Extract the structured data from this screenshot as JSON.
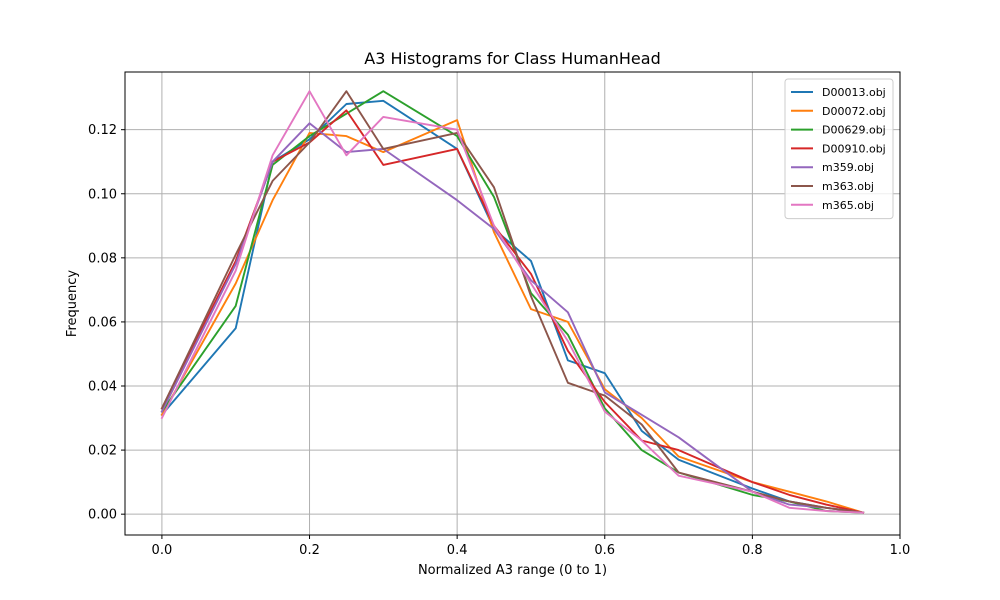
{
  "chart_data": {
    "type": "line",
    "title": "A3 Histograms for Class HumanHead",
    "xlabel": "Normalized A3 range (0 to 1)",
    "ylabel": "Frequency",
    "xlim": [
      -0.05,
      1.0
    ],
    "ylim": [
      -0.0065,
      0.138
    ],
    "xticks": [
      0.0,
      0.2,
      0.4,
      0.6,
      0.8,
      1.0
    ],
    "xtick_labels": [
      "0.0",
      "0.2",
      "0.4",
      "0.6",
      "0.8",
      "1.0"
    ],
    "yticks": [
      0.0,
      0.02,
      0.04,
      0.06,
      0.08,
      0.1,
      0.12
    ],
    "ytick_labels": [
      "0.00",
      "0.02",
      "0.04",
      "0.06",
      "0.08",
      "0.10",
      "0.12"
    ],
    "grid": true,
    "legend_position": "top-right",
    "x": [
      0.0,
      0.1,
      0.15,
      0.2,
      0.25,
      0.3,
      0.4,
      0.45,
      0.5,
      0.55,
      0.6,
      0.65,
      0.7,
      0.8,
      0.85,
      0.9,
      0.95
    ],
    "series": [
      {
        "name": "D00013.obj",
        "color": "#1f77b4",
        "values": [
          0.031,
          0.058,
          0.11,
          0.117,
          0.128,
          0.129,
          0.114,
          0.089,
          0.079,
          0.048,
          0.044,
          0.026,
          0.017,
          0.008,
          0.004,
          0.002,
          0.0005
        ]
      },
      {
        "name": "D00072.obj",
        "color": "#ff7f0e",
        "values": [
          0.031,
          0.072,
          0.098,
          0.119,
          0.118,
          0.113,
          0.123,
          0.088,
          0.064,
          0.06,
          0.039,
          0.03,
          0.018,
          0.01,
          0.007,
          0.004,
          0.0005
        ]
      },
      {
        "name": "D00629.obj",
        "color": "#2ca02c",
        "values": [
          0.032,
          0.065,
          0.109,
          0.118,
          0.125,
          0.132,
          0.118,
          0.099,
          0.069,
          0.056,
          0.033,
          0.02,
          0.013,
          0.006,
          0.004,
          0.001,
          0.0005
        ]
      },
      {
        "name": "D00910.obj",
        "color": "#d62728",
        "values": [
          0.033,
          0.079,
          0.11,
          0.116,
          0.126,
          0.109,
          0.114,
          0.09,
          0.075,
          0.051,
          0.035,
          0.023,
          0.02,
          0.01,
          0.006,
          0.003,
          0.0005
        ]
      },
      {
        "name": "m359.obj",
        "color": "#9467bd",
        "values": [
          0.032,
          0.078,
          0.11,
          0.122,
          0.113,
          0.114,
          0.098,
          0.089,
          0.073,
          0.063,
          0.038,
          0.031,
          0.024,
          0.007,
          0.003,
          0.002,
          0.0005
        ]
      },
      {
        "name": "m363.obj",
        "color": "#8c564b",
        "values": [
          0.033,
          0.081,
          0.104,
          0.116,
          0.132,
          0.114,
          0.119,
          0.102,
          0.068,
          0.041,
          0.037,
          0.028,
          0.013,
          0.007,
          0.004,
          0.002,
          0.0005
        ]
      },
      {
        "name": "m365.obj",
        "color": "#e377c2",
        "values": [
          0.03,
          0.076,
          0.112,
          0.132,
          0.112,
          0.124,
          0.12,
          0.09,
          0.072,
          0.054,
          0.032,
          0.023,
          0.012,
          0.007,
          0.002,
          0.001,
          0.0005
        ]
      }
    ]
  }
}
